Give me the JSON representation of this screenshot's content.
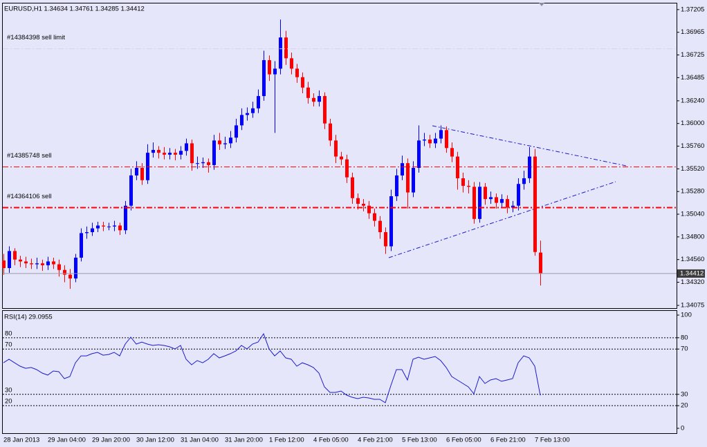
{
  "chart_data": [
    {
      "type": "candlestick",
      "title": "EURUSD,H1  1.34634 1.34761 1.34285 1.34412",
      "categories": [
        "28 Jan 2013",
        null,
        null,
        null,
        null,
        null,
        null,
        null,
        "29 Jan 04:00",
        null,
        null,
        null,
        null,
        null,
        null,
        null,
        "29 Jan 20:00",
        null,
        null,
        null,
        null,
        null,
        null,
        null,
        "30 Jan 12:00",
        null,
        null,
        null,
        null,
        null,
        null,
        null,
        "31 Jan 04:00",
        null,
        null,
        null,
        null,
        null,
        null,
        null,
        "31 Jan 20:00",
        null,
        null,
        null,
        null,
        null,
        null,
        null,
        "1 Feb 12:00",
        null,
        null,
        null,
        null,
        null,
        null,
        null,
        "4 Feb 05:00",
        null,
        null,
        null,
        null,
        null,
        null,
        null,
        "4 Feb 21:00",
        null,
        null,
        null,
        null,
        null,
        null,
        null,
        "5 Feb 13:00",
        null,
        null,
        null,
        null,
        null,
        null,
        null,
        "6 Feb 05:00",
        null,
        null,
        null,
        null,
        null,
        null,
        null,
        "6 Feb 21:00",
        null,
        null,
        null,
        null,
        null,
        null,
        null,
        "7 Feb 13:00",
        null
      ],
      "open": [
        1.3455,
        1.3447,
        1.3465,
        1.3456,
        1.3454,
        1.3452,
        1.3451,
        1.3452,
        1.345,
        1.3454,
        1.3451,
        1.3445,
        1.344,
        1.3436,
        1.3458,
        1.3484,
        1.3485,
        1.3489,
        1.3492,
        1.3491,
        1.3491,
        1.3492,
        1.3487,
        1.3513,
        1.3545,
        1.3553,
        1.354,
        1.3569,
        1.3572,
        1.3569,
        1.3567,
        1.3569,
        1.3567,
        1.3571,
        1.3579,
        1.3558,
        1.3558,
        1.3559,
        1.3556,
        1.3582,
        1.3578,
        1.3579,
        1.3585,
        1.3598,
        1.3609,
        1.3611,
        1.3616,
        1.3629,
        1.3667,
        1.3652,
        1.3658,
        1.3691,
        1.3669,
        1.3658,
        1.3649,
        1.3638,
        1.3627,
        1.3623,
        1.3629,
        1.36,
        1.3582,
        1.3565,
        1.3562,
        1.3543,
        1.3521,
        1.3515,
        1.3513,
        1.3505,
        1.3497,
        1.3485,
        1.347,
        1.3523,
        1.3545,
        1.3558,
        1.3527,
        1.3553,
        1.3582,
        1.3583,
        1.3579,
        1.3584,
        1.3593,
        1.3574,
        1.3565,
        1.3542,
        1.3534,
        1.3533,
        1.3499,
        1.3533,
        1.352,
        1.3522,
        1.3516,
        1.352,
        1.3511,
        1.3513,
        1.3536,
        1.3542,
        1.3565,
        1.34634
      ],
      "high": [
        1.3462,
        1.347,
        1.3468,
        1.346,
        1.3459,
        1.3457,
        1.3458,
        1.3456,
        1.3459,
        1.3458,
        1.3456,
        1.345,
        1.3446,
        1.3462,
        1.3489,
        1.3491,
        1.3495,
        1.3496,
        1.3496,
        1.3495,
        1.3497,
        1.3495,
        1.3518,
        1.3552,
        1.356,
        1.3558,
        1.3578,
        1.358,
        1.3576,
        1.3575,
        1.3574,
        1.3573,
        1.3576,
        1.3584,
        1.3583,
        1.3565,
        1.3564,
        1.3563,
        1.3588,
        1.359,
        1.3586,
        1.3592,
        1.3605,
        1.3616,
        1.3617,
        1.3623,
        1.3636,
        1.3677,
        1.3672,
        1.3666,
        1.371,
        1.3698,
        1.3675,
        1.3663,
        1.3654,
        1.3644,
        1.3632,
        1.3635,
        1.3633,
        1.3605,
        1.3588,
        1.357,
        1.3567,
        1.3548,
        1.3526,
        1.352,
        1.3518,
        1.351,
        1.3502,
        1.349,
        1.353,
        1.3552,
        1.3566,
        1.3563,
        1.356,
        1.3598,
        1.359,
        1.3588,
        1.359,
        1.3598,
        1.3597,
        1.358,
        1.357,
        1.3548,
        1.354,
        1.3538,
        1.3538,
        1.3537,
        1.3528,
        1.3526,
        1.3525,
        1.3524,
        1.3518,
        1.3542,
        1.355,
        1.3575,
        1.3573,
        1.34761
      ],
      "low": [
        1.344,
        1.3442,
        1.345,
        1.3448,
        1.3447,
        1.3446,
        1.3446,
        1.3444,
        1.3445,
        1.3446,
        1.3438,
        1.3432,
        1.3425,
        1.3432,
        1.3454,
        1.3478,
        1.3481,
        1.3485,
        1.3486,
        1.3487,
        1.3486,
        1.3482,
        1.3483,
        1.3508,
        1.354,
        1.3535,
        1.3536,
        1.3564,
        1.3563,
        1.3562,
        1.3562,
        1.3561,
        1.3562,
        1.3566,
        1.355,
        1.3552,
        1.3553,
        1.3548,
        1.3551,
        1.3572,
        1.3573,
        1.3574,
        1.358,
        1.3593,
        1.3603,
        1.3606,
        1.3611,
        1.3624,
        1.3645,
        1.359,
        1.3652,
        1.3662,
        1.3652,
        1.3643,
        1.3632,
        1.3621,
        1.3618,
        1.3618,
        1.3594,
        1.3576,
        1.3558,
        1.3556,
        1.3537,
        1.3515,
        1.3509,
        1.3507,
        1.3499,
        1.3491,
        1.3478,
        1.3462,
        1.3465,
        1.3518,
        1.354,
        1.351,
        1.3522,
        1.3548,
        1.3576,
        1.3574,
        1.3574,
        1.3579,
        1.3569,
        1.3559,
        1.353,
        1.3527,
        1.3526,
        1.3494,
        1.3495,
        1.3514,
        1.3515,
        1.351,
        1.3511,
        1.3505,
        1.3506,
        1.3508,
        1.353,
        1.3537,
        1.346,
        1.34285
      ],
      "close": [
        1.3447,
        1.3465,
        1.3456,
        1.3454,
        1.3452,
        1.3451,
        1.3452,
        1.345,
        1.3454,
        1.3451,
        1.3445,
        1.344,
        1.3436,
        1.3458,
        1.3484,
        1.3485,
        1.3489,
        1.3492,
        1.3491,
        1.3491,
        1.3492,
        1.3487,
        1.3513,
        1.3545,
        1.3553,
        1.354,
        1.3569,
        1.3572,
        1.3569,
        1.3567,
        1.3569,
        1.3567,
        1.3571,
        1.3579,
        1.3558,
        1.3558,
        1.3559,
        1.3556,
        1.3582,
        1.3578,
        1.3579,
        1.3585,
        1.3598,
        1.3609,
        1.3611,
        1.3616,
        1.3629,
        1.3667,
        1.3652,
        1.3658,
        1.3691,
        1.3669,
        1.3658,
        1.3649,
        1.3638,
        1.3627,
        1.3623,
        1.3629,
        1.36,
        1.3582,
        1.3565,
        1.3562,
        1.3543,
        1.3521,
        1.3515,
        1.3513,
        1.3505,
        1.3497,
        1.3485,
        1.347,
        1.3523,
        1.3545,
        1.3558,
        1.3527,
        1.3553,
        1.3582,
        1.3583,
        1.3579,
        1.3584,
        1.3593,
        1.3574,
        1.3565,
        1.3542,
        1.3534,
        1.3533,
        1.3499,
        1.3533,
        1.352,
        1.3522,
        1.3516,
        1.352,
        1.3511,
        1.3513,
        1.3536,
        1.3542,
        1.3565,
        1.3464,
        1.34412
      ],
      "up_color": "#0000ff",
      "down_color": "#ff0000",
      "ylim": [
        1.34046,
        1.3727
      ],
      "yticks": [
        1.37205,
        1.36965,
        1.36725,
        1.36485,
        {
          "value": 1.3624,
          "label": "1.36240"
        },
        {
          "value": 1.36,
          "label": "1.36000"
        },
        {
          "value": 1.3576,
          "label": "1.35760"
        },
        {
          "value": 1.3552,
          "label": "1.35520"
        },
        {
          "value": 1.3528,
          "label": "1.35280"
        },
        {
          "value": 1.3504,
          "label": "1.35040"
        },
        {
          "value": 1.348,
          "label": "1.34800"
        },
        {
          "value": 1.3456,
          "label": "1.34560"
        },
        {
          "value": 1.3432,
          "label": "1.34320"
        },
        1.34075
      ],
      "current_price": 1.34412,
      "orders": [
        {
          "label": "#14384398 sell limit",
          "price": 1.3679,
          "color": "#d4d4ee",
          "width": 1
        },
        {
          "label": "#14385748 sell",
          "price": 1.3554,
          "color": "#ff0000",
          "width": 1
        },
        {
          "label": "#14364106 sell",
          "price": 1.3511,
          "color": "#ff0000",
          "width": 2
        }
      ]
    },
    {
      "type": "line",
      "title": "RSI(14) 29.0955",
      "values": [
        57.9,
        61.0,
        57.9,
        54.9,
        53.0,
        53.7,
        51.8,
        48.8,
        47.0,
        50.6,
        50.0,
        43.9,
        45.7,
        57.9,
        64.0,
        64.0,
        65.9,
        67.1,
        64.6,
        65.2,
        67.1,
        64.0,
        74.4,
        80.5,
        74.4,
        76.2,
        74.4,
        73.2,
        73.8,
        73.2,
        72.0,
        70.1,
        73.2,
        61.0,
        56.1,
        59.8,
        57.9,
        61.0,
        65.9,
        62.2,
        64.0,
        65.9,
        68.3,
        73.2,
        70.1,
        74.4,
        76.2,
        83.5,
        70.1,
        64.0,
        68.3,
        62.2,
        61.0,
        54.9,
        57.9,
        56.1,
        53.7,
        48.8,
        36.6,
        31.7,
        31.7,
        32.9,
        29.3,
        27.4,
        26.2,
        27.4,
        26.8,
        25.6,
        25.6,
        22.6,
        37.8,
        51.8,
        51.8,
        42.7,
        61.0,
        62.8,
        61.0,
        62.2,
        63.4,
        59.8,
        53.7,
        45.7,
        42.7,
        39.6,
        36.6,
        30.5,
        45.7,
        39.6,
        42.7,
        43.9,
        41.5,
        42.7,
        43.9,
        57.9,
        64.0,
        62.2,
        54.9,
        29.0955
      ],
      "color": "#1a1ad0",
      "ylim": [
        -4.3,
        104.3
      ],
      "yticks": [
        100,
        80,
        70,
        30,
        20,
        0
      ],
      "levels": [
        80,
        70,
        30,
        20
      ]
    }
  ]
}
